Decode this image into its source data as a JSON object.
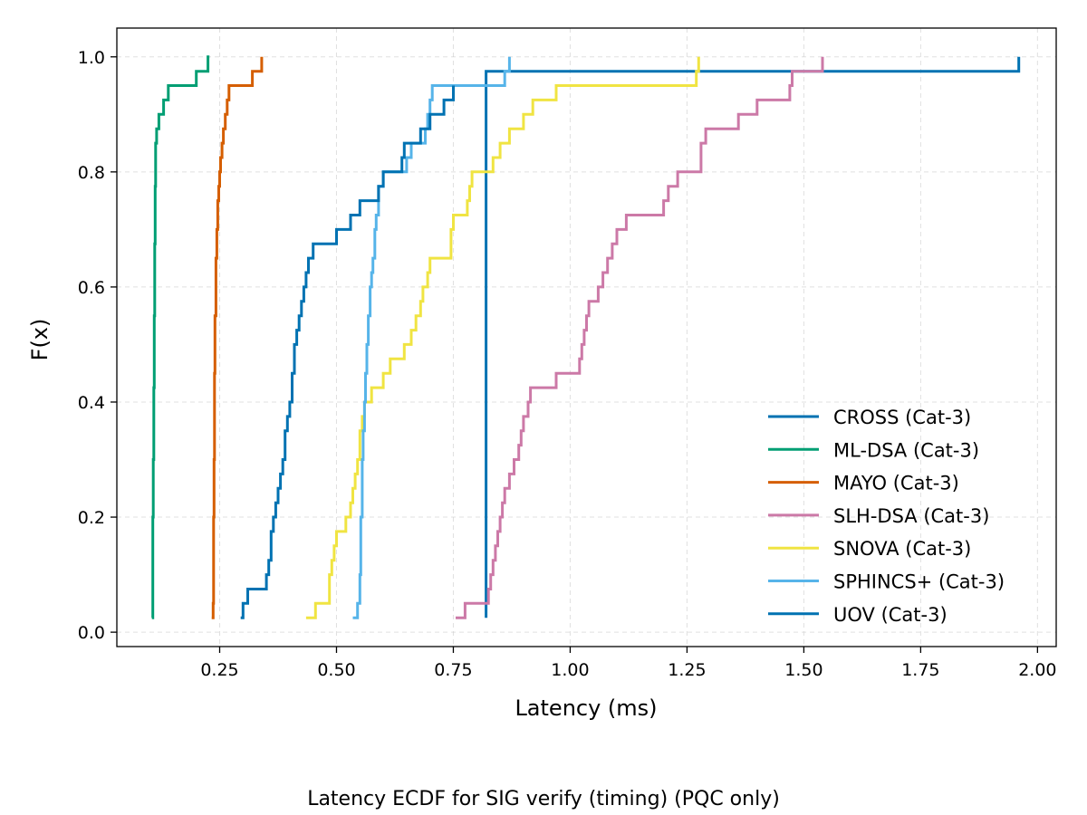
{
  "caption": "Latency ECDF for SIG verify (timing) (PQC only)",
  "chart_data": {
    "type": "line",
    "subtype": "ecdf-step",
    "title": "",
    "xlabel": "Latency (ms)",
    "ylabel": "F(x)",
    "xlim": [
      0.03,
      2.04
    ],
    "ylim": [
      -0.025,
      1.05
    ],
    "xticks": [
      0.25,
      0.5,
      0.75,
      1.0,
      1.25,
      1.5,
      1.75,
      2.0
    ],
    "xtick_labels": [
      "0.25",
      "0.50",
      "0.75",
      "1.00",
      "1.25",
      "1.50",
      "1.75",
      "2.00"
    ],
    "yticks": [
      0.0,
      0.2,
      0.4,
      0.6,
      0.8,
      1.0
    ],
    "ytick_labels": [
      "0.0",
      "0.2",
      "0.4",
      "0.6",
      "0.8",
      "1.0"
    ],
    "grid": true,
    "legend_position": "lower-right",
    "series": [
      {
        "name": "CROSS (Cat-3)",
        "color": "#0072b2",
        "x": [
          0.82,
          0.82,
          0.82,
          0.82,
          0.82,
          0.82,
          0.82,
          0.82,
          0.82,
          0.82,
          0.82,
          0.82,
          0.82,
          0.82,
          0.82,
          0.82,
          0.82,
          0.82,
          0.82,
          0.82,
          0.82,
          0.82,
          0.82,
          0.82,
          0.82,
          0.82,
          0.82,
          0.82,
          0.82,
          0.82,
          0.82,
          0.82,
          0.82,
          0.82,
          0.82,
          0.82,
          0.82,
          0.82,
          1.96,
          1.96
        ],
        "y": [
          0.025,
          0.05,
          0.075,
          0.1,
          0.125,
          0.15,
          0.175,
          0.2,
          0.225,
          0.25,
          0.275,
          0.3,
          0.325,
          0.35,
          0.375,
          0.4,
          0.425,
          0.45,
          0.475,
          0.5,
          0.525,
          0.55,
          0.575,
          0.6,
          0.625,
          0.65,
          0.675,
          0.7,
          0.725,
          0.75,
          0.775,
          0.8,
          0.825,
          0.85,
          0.875,
          0.9,
          0.925,
          0.975,
          0.975,
          1.0
        ]
      },
      {
        "name": "ML-DSA (Cat-3)",
        "color": "#009e73",
        "x": [
          0.105,
          0.107,
          0.107,
          0.108,
          0.109,
          0.11,
          0.111,
          0.112,
          0.113,
          0.115,
          0.117,
          0.12,
          0.125,
          0.13,
          0.14,
          0.145,
          0.15,
          0.2,
          0.225,
          0.228
        ],
        "y": [
          0.025,
          0.125,
          0.2,
          0.3,
          0.425,
          0.55,
          0.675,
          0.775,
          0.85,
          0.875,
          0.875,
          0.9,
          0.9,
          0.925,
          0.95,
          0.95,
          0.95,
          0.975,
          1.0,
          1.0
        ]
      },
      {
        "name": "MAYO (Cat-3)",
        "color": "#d55e00",
        "x": [
          0.233,
          0.236,
          0.237,
          0.238,
          0.239,
          0.24,
          0.242,
          0.244,
          0.246,
          0.248,
          0.25,
          0.252,
          0.255,
          0.258,
          0.262,
          0.266,
          0.27,
          0.275,
          0.32,
          0.34
        ],
        "y": [
          0.025,
          0.05,
          0.2,
          0.3,
          0.45,
          0.55,
          0.65,
          0.7,
          0.75,
          0.775,
          0.8,
          0.825,
          0.85,
          0.875,
          0.9,
          0.925,
          0.95,
          0.95,
          0.975,
          1.0
        ]
      },
      {
        "name": "SLH-DSA (Cat-3)",
        "color": "#cc79a7",
        "x": [
          0.755,
          0.76,
          0.775,
          0.825,
          0.83,
          0.835,
          0.84,
          0.845,
          0.85,
          0.855,
          0.86,
          0.87,
          0.88,
          0.89,
          0.895,
          0.9,
          0.91,
          0.915,
          0.95,
          0.97,
          0.98,
          1.02,
          1.025,
          1.03,
          1.035,
          1.04,
          1.045,
          1.06,
          1.07,
          1.08,
          1.09,
          1.095,
          1.1,
          1.12,
          1.19,
          1.2,
          1.21,
          1.23,
          1.28,
          1.29,
          1.3,
          1.36,
          1.4,
          1.47,
          1.475,
          1.54
        ],
        "y": [
          0.025,
          0.025,
          0.05,
          0.075,
          0.1,
          0.125,
          0.15,
          0.175,
          0.2,
          0.225,
          0.25,
          0.275,
          0.3,
          0.325,
          0.35,
          0.375,
          0.4,
          0.425,
          0.425,
          0.45,
          0.45,
          0.475,
          0.5,
          0.525,
          0.55,
          0.575,
          0.575,
          0.6,
          0.625,
          0.65,
          0.675,
          0.675,
          0.7,
          0.725,
          0.725,
          0.75,
          0.775,
          0.8,
          0.85,
          0.875,
          0.875,
          0.9,
          0.925,
          0.95,
          0.975,
          1.0
        ]
      },
      {
        "name": "SNOVA (Cat-3)",
        "color": "#f0e442",
        "x": [
          0.435,
          0.455,
          0.48,
          0.485,
          0.49,
          0.495,
          0.5,
          0.52,
          0.53,
          0.535,
          0.54,
          0.545,
          0.55,
          0.555,
          0.56,
          0.575,
          0.6,
          0.615,
          0.645,
          0.66,
          0.67,
          0.68,
          0.685,
          0.695,
          0.7,
          0.74,
          0.745,
          0.75,
          0.78,
          0.785,
          0.79,
          0.79,
          0.835,
          0.85,
          0.87,
          0.9,
          0.92,
          0.97,
          1.01,
          1.27,
          1.275
        ],
        "y": [
          0.025,
          0.05,
          0.05,
          0.1,
          0.125,
          0.15,
          0.175,
          0.2,
          0.225,
          0.25,
          0.275,
          0.3,
          0.35,
          0.375,
          0.4,
          0.425,
          0.45,
          0.475,
          0.5,
          0.525,
          0.55,
          0.575,
          0.6,
          0.625,
          0.65,
          0.65,
          0.7,
          0.725,
          0.75,
          0.775,
          0.8,
          0.8,
          0.825,
          0.85,
          0.875,
          0.9,
          0.925,
          0.95,
          0.95,
          0.975,
          1.0
        ]
      },
      {
        "name": "SPHINCS+ (Cat-3)",
        "color": "#56b4e9",
        "x": [
          0.535,
          0.545,
          0.55,
          0.552,
          0.555,
          0.557,
          0.56,
          0.562,
          0.565,
          0.568,
          0.572,
          0.575,
          0.578,
          0.582,
          0.585,
          0.59,
          0.6,
          0.65,
          0.66,
          0.67,
          0.69,
          0.695,
          0.7,
          0.705,
          0.75,
          0.86,
          0.87
        ],
        "y": [
          0.025,
          0.05,
          0.1,
          0.2,
          0.3,
          0.35,
          0.4,
          0.45,
          0.5,
          0.55,
          0.6,
          0.625,
          0.65,
          0.7,
          0.725,
          0.775,
          0.8,
          0.825,
          0.85,
          0.85,
          0.875,
          0.9,
          0.925,
          0.95,
          0.95,
          0.975,
          1.0
        ]
      },
      {
        "name": "UOV (Cat-3)",
        "color": "#0072b2",
        "x": [
          0.295,
          0.3,
          0.31,
          0.35,
          0.355,
          0.36,
          0.365,
          0.37,
          0.375,
          0.38,
          0.385,
          0.39,
          0.395,
          0.4,
          0.405,
          0.41,
          0.415,
          0.42,
          0.425,
          0.43,
          0.435,
          0.44,
          0.45,
          0.5,
          0.53,
          0.55,
          0.59,
          0.6,
          0.64,
          0.645,
          0.66,
          0.68,
          0.7,
          0.73,
          0.75
        ],
        "y": [
          0.025,
          0.05,
          0.075,
          0.1,
          0.125,
          0.175,
          0.2,
          0.225,
          0.25,
          0.275,
          0.3,
          0.35,
          0.375,
          0.4,
          0.45,
          0.5,
          0.525,
          0.55,
          0.575,
          0.6,
          0.625,
          0.65,
          0.675,
          0.7,
          0.725,
          0.75,
          0.775,
          0.8,
          0.825,
          0.85,
          0.85,
          0.875,
          0.9,
          0.925,
          0.95
        ]
      }
    ]
  }
}
